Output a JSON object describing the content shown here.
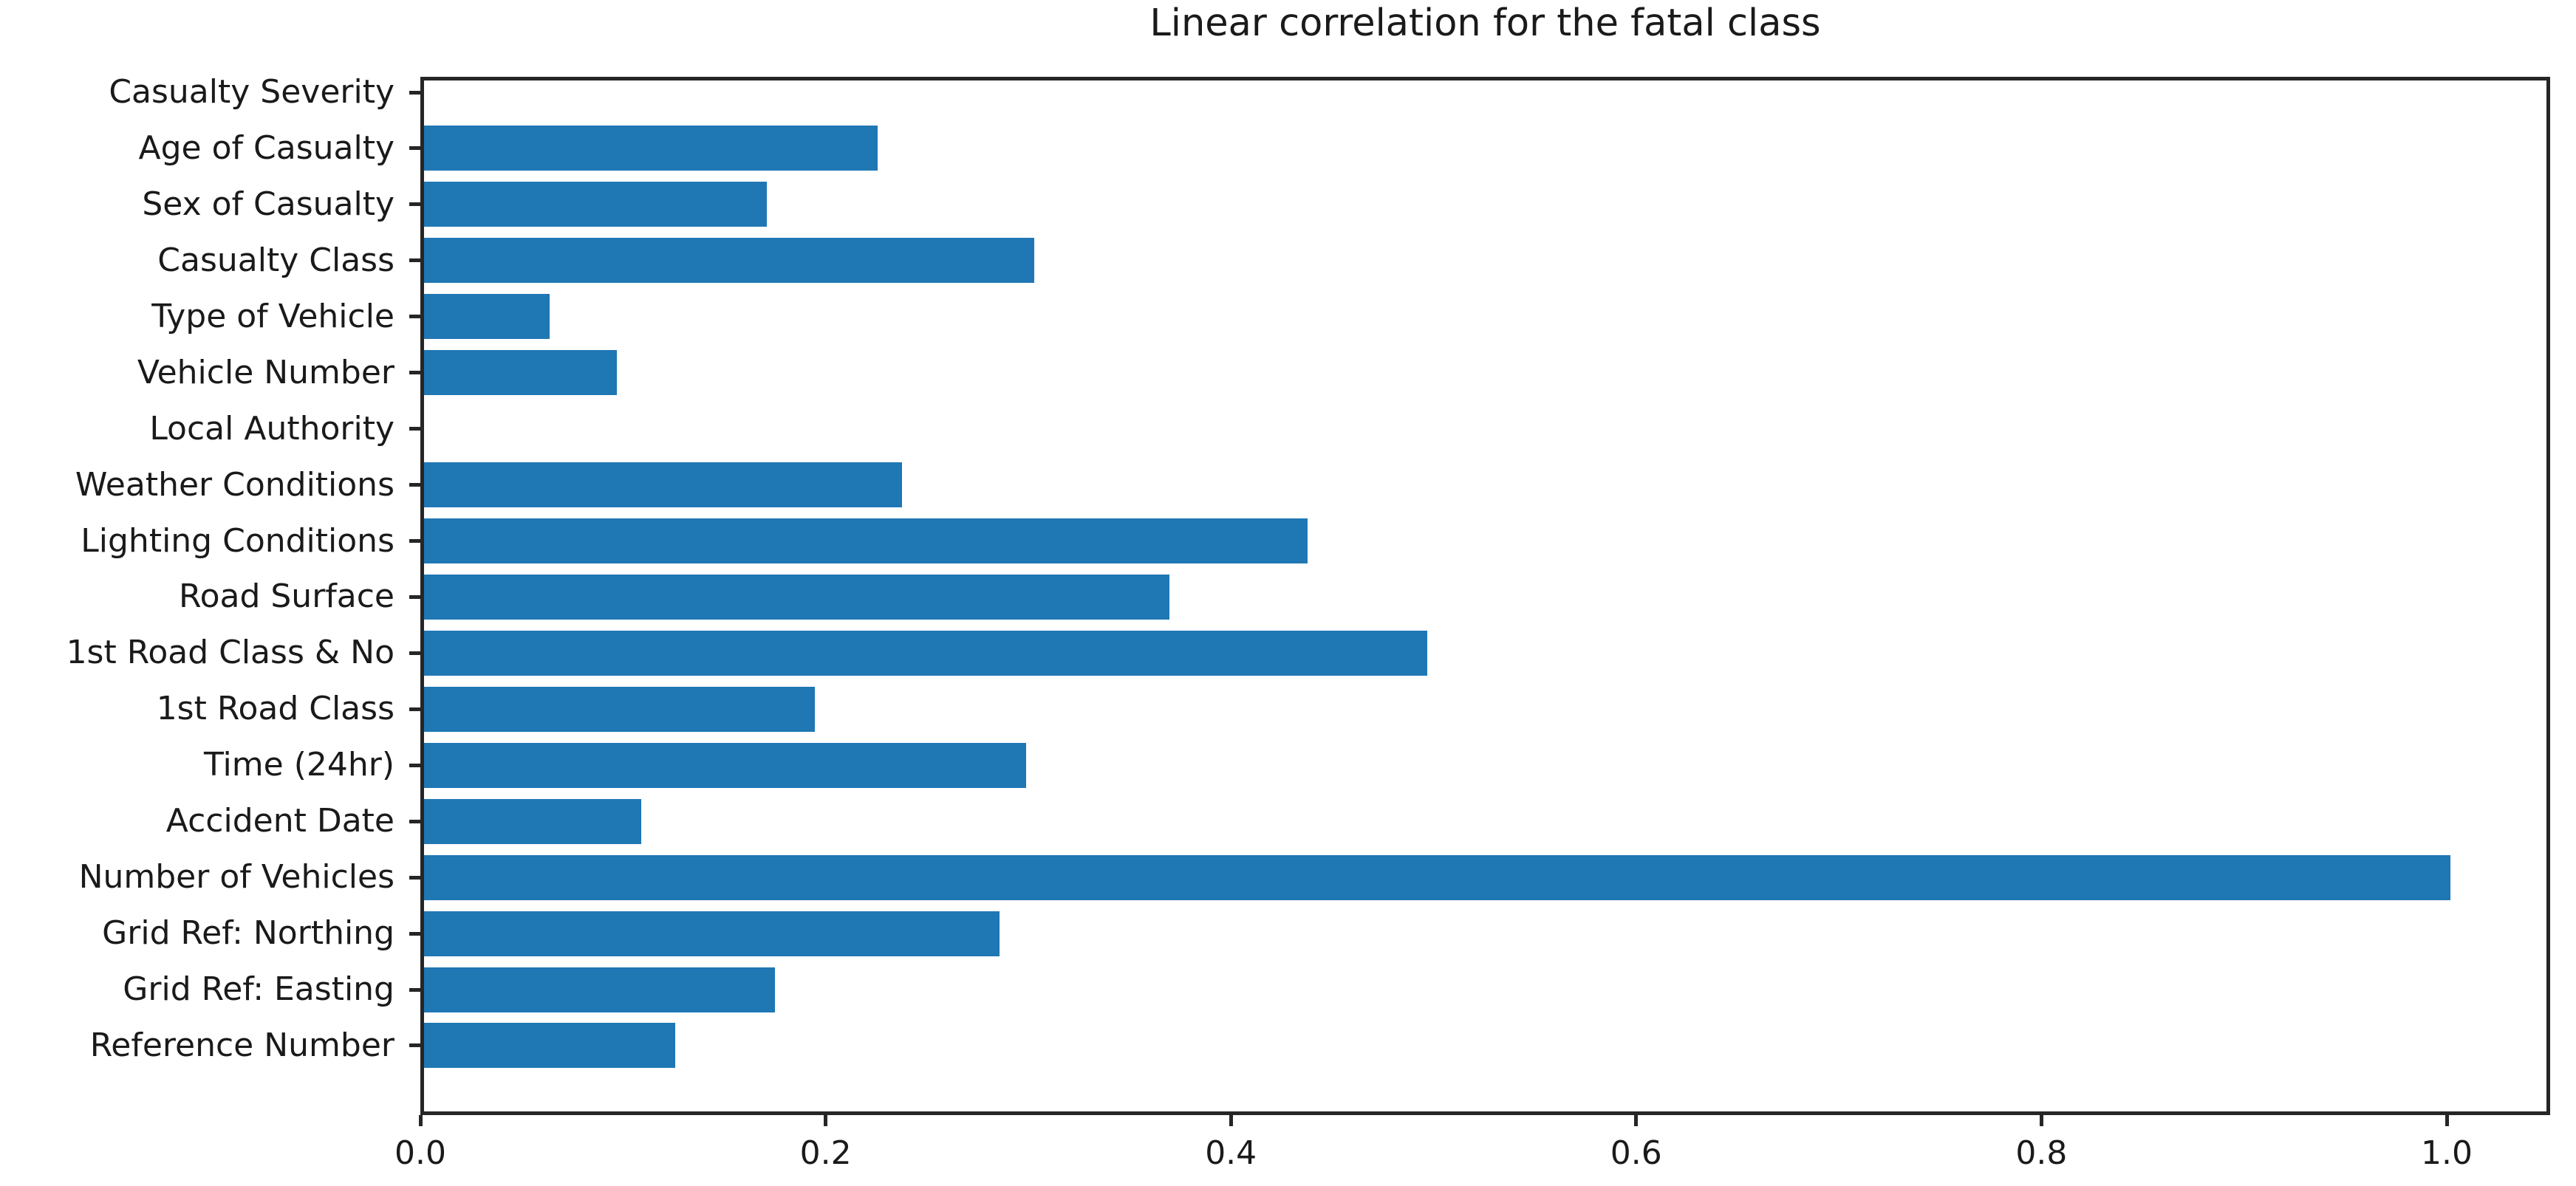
{
  "chart_data": {
    "type": "bar",
    "orientation": "horizontal",
    "title": "Linear correlation for the fatal class",
    "categories": [
      "Casualty Severity",
      "Age of Casualty",
      "Sex of Casualty",
      "Casualty Class",
      "Type of Vehicle",
      "Vehicle Number",
      "Local Authority",
      "Weather Conditions",
      "Lighting Conditions",
      "Road Surface",
      "1st Road Class & No",
      "1st Road Class",
      "Time (24hr)",
      "Accident Date",
      "Number of Vehicles",
      "Grid Ref: Northing",
      "Grid Ref: Easting",
      "Reference Number"
    ],
    "values": [
      0.0,
      0.224,
      0.169,
      0.301,
      0.062,
      0.095,
      0.0,
      0.236,
      0.436,
      0.368,
      0.495,
      0.193,
      0.297,
      0.107,
      1.0,
      0.284,
      0.173,
      0.124
    ],
    "xlabel": "",
    "ylabel": "",
    "xlim": [
      0.0,
      1.051
    ],
    "xtick_labels": [
      "0.0",
      "0.2",
      "0.4",
      "0.6",
      "0.8",
      "1.0"
    ],
    "xtick_values": [
      0.0,
      0.2,
      0.4,
      0.6,
      0.8,
      1.0
    ],
    "category_order": "top-to-bottom",
    "grid": false,
    "legend": null,
    "bar_color": "#1f77b4",
    "axis_color": "#262626",
    "text_color": "#1a1a1a",
    "background_color": "#ffffff"
  }
}
